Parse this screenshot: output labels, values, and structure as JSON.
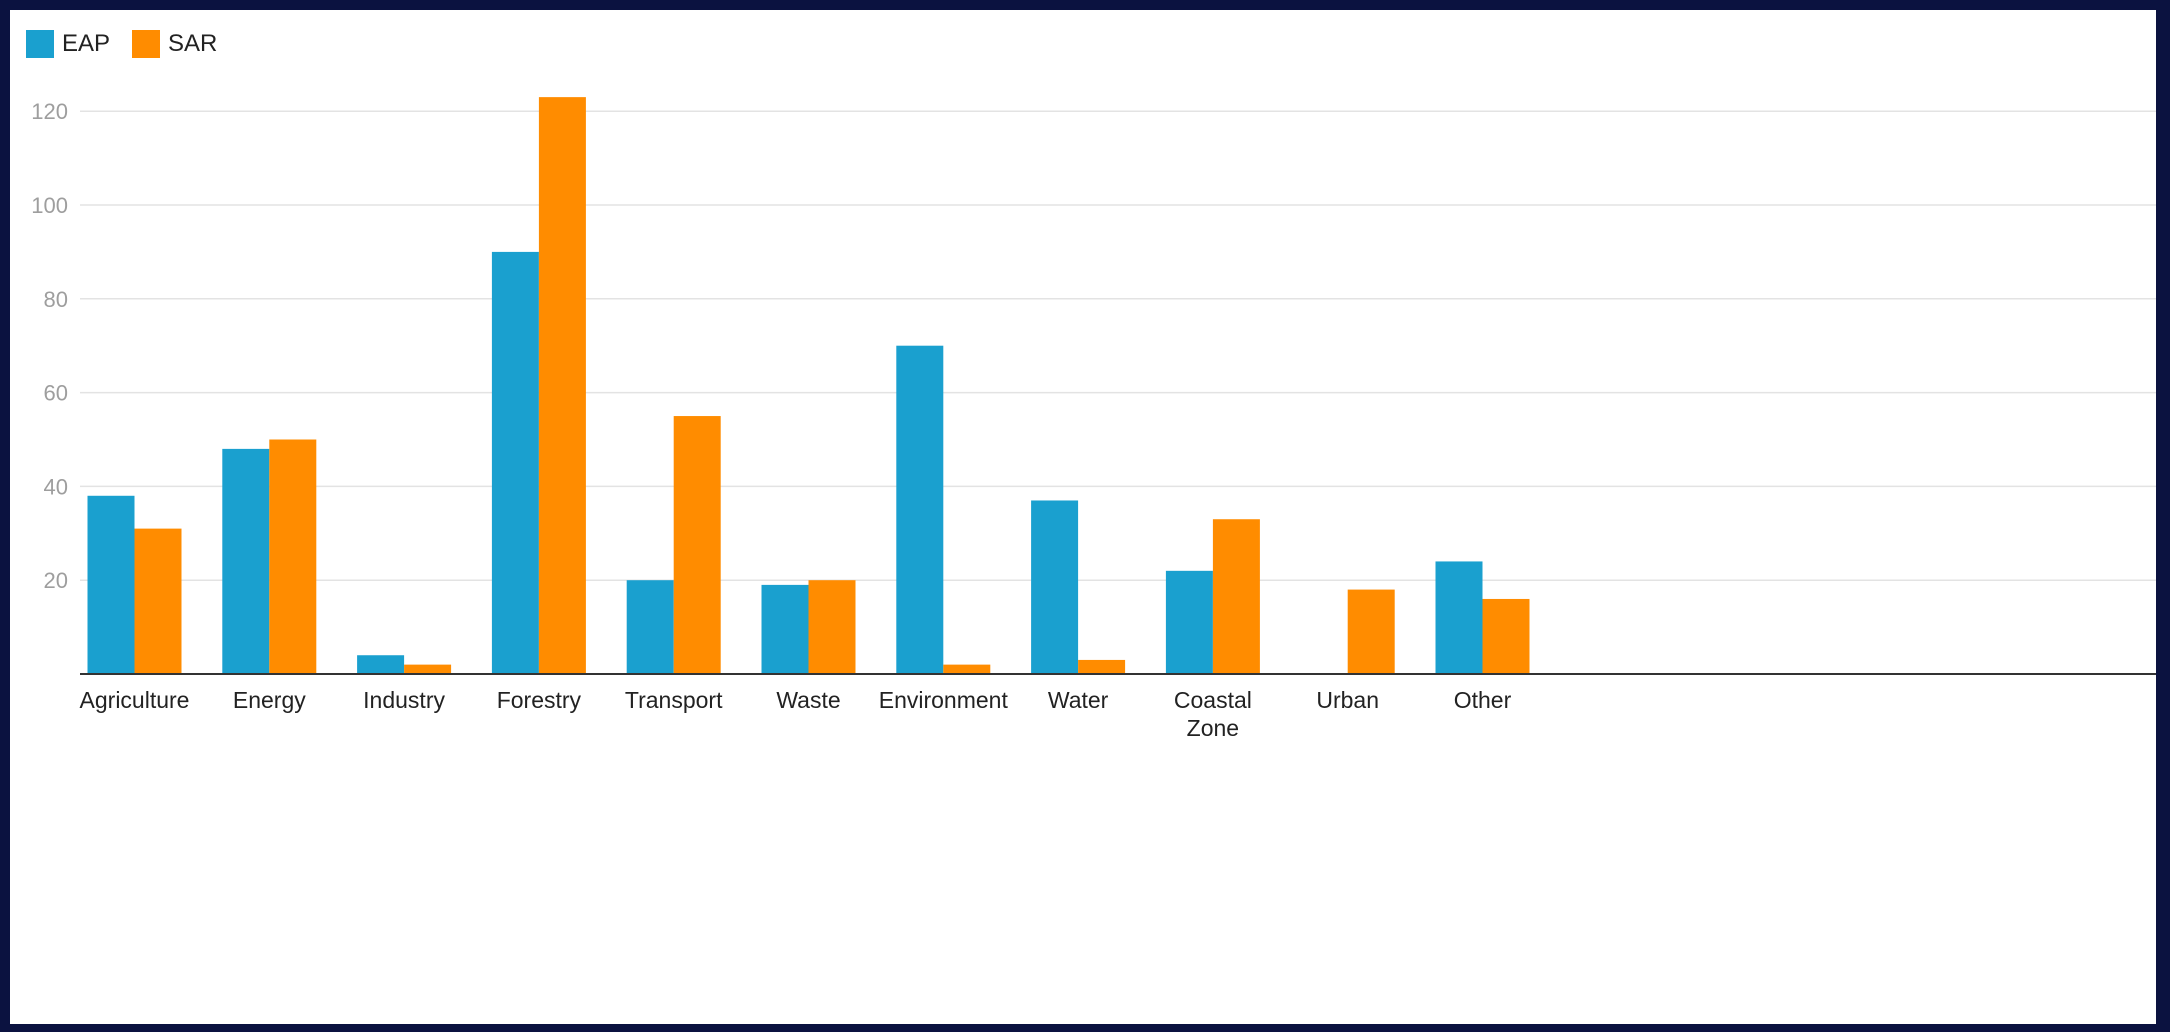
{
  "chart_data": {
    "type": "bar",
    "categories": [
      "Agriculture",
      "Energy",
      "Industry",
      "Forestry",
      "Transport",
      "Waste",
      "Environment",
      "Water",
      "Coastal Zone",
      "Urban",
      "Other"
    ],
    "category_lines": [
      [
        "Agriculture"
      ],
      [
        "Energy"
      ],
      [
        "Industry"
      ],
      [
        "Forestry"
      ],
      [
        "Transport"
      ],
      [
        "Waste"
      ],
      [
        "Environment"
      ],
      [
        "Water"
      ],
      [
        "Coastal",
        "Zone"
      ],
      [
        "Urban"
      ],
      [
        "Other"
      ]
    ],
    "series": [
      {
        "name": "EAP",
        "color": "#1aa0cf",
        "values": [
          38,
          48,
          4,
          90,
          20,
          19,
          70,
          37,
          22,
          0,
          24
        ]
      },
      {
        "name": "SAR",
        "color": "#ff8c00",
        "values": [
          31,
          50,
          2,
          123,
          55,
          20,
          2,
          3,
          33,
          18,
          16
        ]
      }
    ],
    "yticks": [
      20,
      40,
      60,
      80,
      100,
      120
    ],
    "ylim": [
      0,
      125
    ],
    "grid": true,
    "legend_position": "top-left",
    "title": "",
    "xlabel": "",
    "ylabel": ""
  }
}
